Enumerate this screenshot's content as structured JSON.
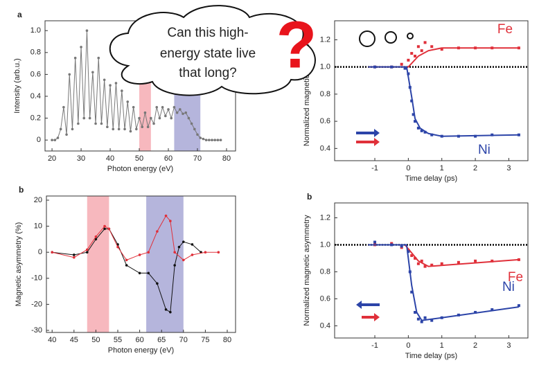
{
  "chart_data": [
    {
      "type": "line",
      "panel_label": "a",
      "x_label": "Photon energy (eV)",
      "y_label": "Intensity (arb.u.)",
      "xlim": [
        17.6,
        83.1
      ],
      "ylim": [
        -0.1,
        1.09
      ],
      "xticks": [
        20,
        30,
        40,
        50,
        60,
        70,
        80
      ],
      "yticks": [
        0,
        0.2,
        0.4,
        0.6,
        0.8,
        {
          "value": 1,
          "label": "1.0"
        }
      ],
      "bands": [
        {
          "range": [
            50,
            54
          ],
          "color": "#f4a0a8"
        },
        {
          "range": [
            62,
            71
          ],
          "color": "#9c9cd0"
        }
      ],
      "series": [
        {
          "color": "#777777",
          "x": [
            20,
            21,
            22,
            23,
            24,
            25,
            26,
            27,
            28,
            29,
            30,
            31,
            32,
            33,
            34,
            35,
            36,
            37,
            38,
            39,
            40,
            41,
            42,
            43,
            44,
            45,
            46,
            47,
            48,
            49,
            50,
            51,
            52,
            53,
            54,
            55,
            56,
            57,
            58,
            59,
            60,
            61,
            62,
            63,
            64,
            65,
            66,
            67,
            68,
            69,
            70,
            71,
            72,
            73,
            74,
            75,
            76,
            77,
            78
          ],
          "values": [
            0,
            0,
            0.02,
            0.1,
            0.3,
            0.05,
            0.6,
            0.1,
            0.75,
            0.15,
            0.85,
            0.2,
            1.0,
            0.2,
            0.62,
            0.15,
            0.75,
            0.15,
            0.55,
            0.12,
            0.5,
            0.1,
            0.52,
            0.1,
            0.45,
            0.1,
            0.35,
            0.08,
            0.3,
            0.1,
            0.2,
            0.12,
            0.25,
            0.12,
            0.2,
            0.15,
            0.3,
            0.2,
            0.3,
            0.22,
            0.28,
            0.2,
            0.3,
            0.25,
            0.28,
            0.24,
            0.25,
            0.2,
            0.15,
            0.1,
            0.05,
            0.02,
            0.01,
            0,
            0,
            0,
            0,
            0,
            0
          ]
        }
      ]
    },
    {
      "type": "line",
      "panel_label": "b",
      "x_label": "Photon energy (eV)",
      "y_label": "Magnetic asymmetry (%)",
      "xlim": [
        38.7,
        81.9
      ],
      "ylim": [
        -30.8,
        21.6
      ],
      "xticks": [
        40,
        45,
        50,
        55,
        60,
        65,
        70,
        75,
        80
      ],
      "yticks": [
        -30,
        -20,
        -10,
        0,
        10,
        20
      ],
      "bands": [
        {
          "range": [
            48,
            53
          ],
          "color": "#f4a0a8"
        },
        {
          "range": [
            61.5,
            70
          ],
          "color": "#9c9cd0"
        }
      ],
      "series": [
        {
          "color": "#111111",
          "x": [
            40,
            45,
            48,
            50,
            52,
            53,
            55,
            57,
            60,
            62,
            64,
            66,
            67,
            68,
            69,
            70,
            72,
            74
          ],
          "values": [
            0,
            -1,
            0,
            5,
            9,
            9,
            3,
            -5,
            -8,
            -8,
            -12,
            -22,
            -23,
            -5,
            2,
            4,
            3,
            0
          ]
        },
        {
          "color": "#e0303a",
          "x": [
            40,
            45,
            48,
            50,
            52,
            53,
            55,
            57,
            60,
            62,
            64,
            66,
            67,
            68,
            70,
            72,
            75,
            78
          ],
          "values": [
            0,
            -2,
            1,
            6,
            10,
            9,
            2,
            -3,
            -1,
            0,
            8,
            14,
            12,
            0,
            -3,
            -1,
            0,
            0
          ]
        }
      ]
    },
    {
      "type": "scatter",
      "x_label": "Time delay (ps)",
      "y_label": "Normalized magnetic asymmetry",
      "xlim": [
        -2.2,
        3.57
      ],
      "ylim": [
        0.31,
        1.34
      ],
      "xticks": [
        -1,
        0,
        1,
        2,
        3
      ],
      "yticks": [
        0.4,
        0.6,
        0.8,
        {
          "value": 1,
          "label": "1.0"
        },
        1.2
      ],
      "hline": 1,
      "series": [
        {
          "name": "Fe",
          "color": "#e0303a",
          "x": [
            -1,
            -0.5,
            -0.2,
            0,
            0.1,
            0.2,
            0.3,
            0.4,
            0.5,
            0.7,
            1,
            1.5,
            2,
            2.5,
            3.3
          ],
          "values": [
            1.0,
            1.0,
            1.02,
            1.05,
            1.1,
            1.08,
            1.15,
            1.12,
            1.18,
            1.15,
            1.13,
            1.14,
            1.14,
            1.14,
            1.14
          ],
          "fit": {
            "x": [
              -1.2,
              0,
              0.3,
              0.6,
              1,
              3.3
            ],
            "values": [
              1.0,
              1.0,
              1.08,
              1.12,
              1.14,
              1.14
            ]
          }
        },
        {
          "name": "Ni",
          "color": "#2c44a8",
          "x": [
            -1,
            -0.5,
            -0.1,
            0,
            0.05,
            0.1,
            0.15,
            0.2,
            0.3,
            0.4,
            0.5,
            0.7,
            1,
            1.5,
            2,
            2.5,
            3.3
          ],
          "values": [
            1.0,
            1.0,
            0.99,
            0.95,
            0.85,
            0.75,
            0.65,
            0.6,
            0.55,
            0.53,
            0.52,
            0.5,
            0.49,
            0.49,
            0.49,
            0.5,
            0.5
          ],
          "fit": {
            "x": [
              -1.2,
              -0.05,
              0.1,
              0.2,
              0.35,
              0.6,
              1,
              3.3
            ],
            "values": [
              1.0,
              1.0,
              0.78,
              0.62,
              0.55,
              0.51,
              0.49,
              0.5
            ]
          }
        }
      ]
    },
    {
      "type": "scatter",
      "panel_label": "b",
      "x_label": "Time delay (ps)",
      "y_label": "Normalized magnetic asymmetry",
      "xlim": [
        -2.2,
        3.57
      ],
      "ylim": [
        0.31,
        1.31
      ],
      "xticks": [
        -1,
        0,
        1,
        2,
        3
      ],
      "yticks": [
        0.4,
        0.6,
        0.8,
        {
          "value": 1,
          "label": "1.0"
        },
        1.2
      ],
      "hline": 1,
      "series": [
        {
          "name": "Fe",
          "color": "#e0303a",
          "x": [
            -1,
            -0.5,
            -0.2,
            0,
            0.1,
            0.2,
            0.3,
            0.4,
            0.5,
            0.7,
            1,
            1.5,
            2,
            2.5,
            3.3
          ],
          "values": [
            1.0,
            1.01,
            0.98,
            0.96,
            0.92,
            0.9,
            0.86,
            0.88,
            0.84,
            0.85,
            0.86,
            0.87,
            0.88,
            0.88,
            0.89
          ],
          "fit": {
            "x": [
              -1.2,
              -0.1,
              0.3,
              0.6,
              3.3
            ],
            "values": [
              1.0,
              1.0,
              0.88,
              0.84,
              0.89
            ]
          }
        },
        {
          "name": "Ni",
          "color": "#2c44a8",
          "x": [
            -1,
            -0.5,
            -0.2,
            0,
            0.05,
            0.1,
            0.2,
            0.3,
            0.4,
            0.5,
            0.7,
            1,
            1.5,
            2,
            2.5,
            3.3
          ],
          "values": [
            1.02,
            1.0,
            0.99,
            0.95,
            0.8,
            0.65,
            0.5,
            0.45,
            0.43,
            0.46,
            0.44,
            0.46,
            0.48,
            0.5,
            0.52,
            0.55
          ],
          "fit": {
            "x": [
              -1.2,
              -0.05,
              0.1,
              0.25,
              0.4,
              1,
              3.3
            ],
            "values": [
              1.0,
              1.0,
              0.7,
              0.5,
              0.44,
              0.46,
              0.54
            ]
          }
        }
      ]
    }
  ],
  "callout": {
    "lines": [
      "Can this high-",
      "energy state live",
      "that long?"
    ],
    "symbol": "?"
  }
}
